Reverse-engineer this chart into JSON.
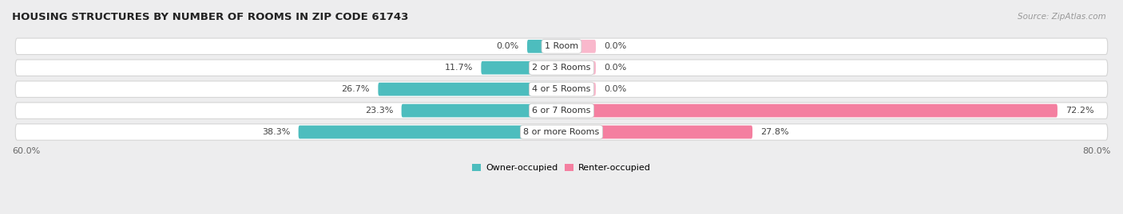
{
  "title": "HOUSING STRUCTURES BY NUMBER OF ROOMS IN ZIP CODE 61743",
  "source": "Source: ZipAtlas.com",
  "categories": [
    "1 Room",
    "2 or 3 Rooms",
    "4 or 5 Rooms",
    "6 or 7 Rooms",
    "8 or more Rooms"
  ],
  "owner_values": [
    0.0,
    11.7,
    26.7,
    23.3,
    38.3
  ],
  "renter_values": [
    0.0,
    0.0,
    0.0,
    72.2,
    27.8
  ],
  "owner_color": "#4dbdbe",
  "renter_color": "#f47fa0",
  "renter_color_light": "#f9b8cc",
  "xlim_left": -80.0,
  "xlim_right": 80.0,
  "background_color": "#ededee",
  "row_bg_color": "#ffffff",
  "row_border_color": "#d5d5d5",
  "legend_owner": "Owner-occupied",
  "legend_renter": "Renter-occupied",
  "x_left_label": "60.0%",
  "x_right_label": "80.0%",
  "min_bar_width": 5.0
}
